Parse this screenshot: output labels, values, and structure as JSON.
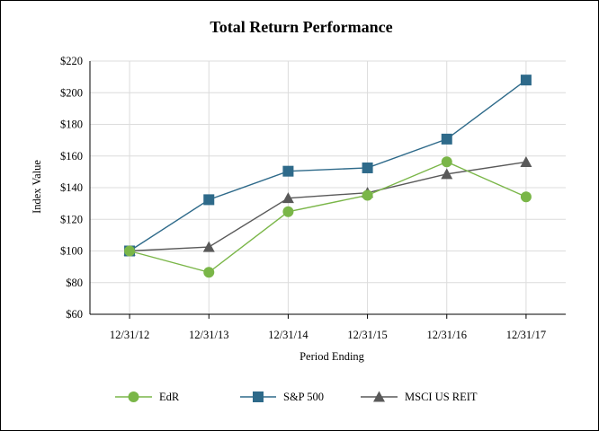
{
  "chart_data": {
    "type": "line",
    "title": "Total Return Performance",
    "xlabel": "Period Ending",
    "ylabel": "Index Value",
    "categories": [
      "12/31/12",
      "12/31/13",
      "12/31/14",
      "12/31/15",
      "12/31/16",
      "12/31/17"
    ],
    "ylim": [
      60,
      220
    ],
    "yticks": [
      60,
      80,
      100,
      120,
      140,
      160,
      180,
      200,
      220
    ],
    "ytick_prefix": "$",
    "grid": true,
    "legend_position": "bottom",
    "series": [
      {
        "name": "EdR",
        "color": "#7ab648",
        "marker": "circle",
        "values": [
          100,
          86.5,
          124.8,
          135.2,
          156.3,
          134.2
        ]
      },
      {
        "name": "S&P 500",
        "color": "#2e6a8a",
        "marker": "square",
        "values": [
          100,
          132.4,
          150.4,
          152.5,
          170.7,
          208.0
        ]
      },
      {
        "name": "MSCI US REIT",
        "color": "#595959",
        "marker": "triangle",
        "values": [
          100,
          102.5,
          133.4,
          136.8,
          148.6,
          156.2
        ]
      }
    ]
  }
}
